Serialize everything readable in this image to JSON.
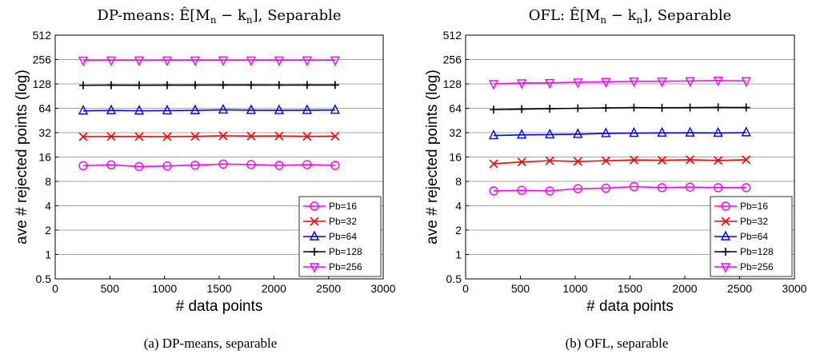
{
  "chart_data": [
    {
      "type": "line",
      "title_prefix": "DP-means: ",
      "title_math": "Ê[M",
      "title_suffix": ", Separable",
      "title_full": "DP-means: Ê[M_n − k_n], Separable",
      "xlabel": "# data points",
      "ylabel": "ave # rejected points (log)",
      "caption": "(a) DP-means, separable",
      "xlim": [
        0,
        3000
      ],
      "ylim": [
        0.5,
        512
      ],
      "yscale": "log2",
      "xticks": [
        "0",
        "500",
        "1000",
        "1500",
        "2000",
        "2500",
        "3000"
      ],
      "yticks": [
        "0.5",
        "1",
        "2",
        "4",
        "8",
        "16",
        "32",
        "64",
        "128",
        "256",
        "512"
      ],
      "grid": true,
      "legend_position": "bottom-right",
      "x": [
        256,
        512,
        768,
        1024,
        1280,
        1536,
        1792,
        2048,
        2304,
        2560
      ],
      "series": [
        {
          "name": "Pb=16",
          "color": "#ff00ff",
          "marker": "circle",
          "values": [
            12.5,
            12.8,
            12.2,
            12.4,
            12.7,
            13.1,
            12.9,
            12.6,
            12.9,
            12.6
          ]
        },
        {
          "name": "Pb=32",
          "color": "#ff0000",
          "marker": "x",
          "values": [
            28.5,
            28.7,
            28.6,
            28.5,
            28.8,
            29.3,
            29.0,
            29.1,
            28.8,
            28.9
          ]
        },
        {
          "name": "Pb=64",
          "color": "#0000ff",
          "marker": "triangle-up",
          "values": [
            59.5,
            60.2,
            59.6,
            59.8,
            60.3,
            61.2,
            60.5,
            60.4,
            60.6,
            60.9
          ]
        },
        {
          "name": "Pb=128",
          "color": "#000000",
          "marker": "plus",
          "values": [
            123,
            123.5,
            123.3,
            123.4,
            123.6,
            124,
            123.8,
            123.7,
            123.9,
            124
          ]
        },
        {
          "name": "Pb=256",
          "color": "#ff00ff",
          "marker": "triangle-down",
          "values": [
            250,
            250.5,
            250.2,
            250.4,
            250.6,
            251,
            250.8,
            250.7,
            250.9,
            251
          ]
        }
      ]
    },
    {
      "type": "line",
      "title_prefix": "OFL: ",
      "title_math": "Ê[M",
      "title_suffix": ", Separable",
      "title_full": "OFL: Ê[M_n − k_n], Separable",
      "xlabel": "# data points",
      "ylabel": "ave # rejected points (log)",
      "caption": "(b) OFL, separable",
      "xlim": [
        0,
        3000
      ],
      "ylim": [
        0.5,
        512
      ],
      "yscale": "log2",
      "xticks": [
        "0",
        "500",
        "1000",
        "1500",
        "2000",
        "2500",
        "3000"
      ],
      "yticks": [
        "0.5",
        "1",
        "2",
        "4",
        "8",
        "16",
        "32",
        "64",
        "128",
        "256",
        "512"
      ],
      "grid": true,
      "legend_position": "bottom-right",
      "x": [
        256,
        512,
        768,
        1024,
        1280,
        1536,
        1792,
        2048,
        2304,
        2560
      ],
      "series": [
        {
          "name": "Pb=16",
          "color": "#ff00ff",
          "marker": "circle",
          "values": [
            6.1,
            6.2,
            6.1,
            6.5,
            6.6,
            6.9,
            6.7,
            6.8,
            6.7,
            6.7
          ]
        },
        {
          "name": "Pb=32",
          "color": "#ff0000",
          "marker": "x",
          "values": [
            13.2,
            13.9,
            14.4,
            14.1,
            14.4,
            14.7,
            14.6,
            14.8,
            14.5,
            14.8
          ]
        },
        {
          "name": "Pb=64",
          "color": "#0000ff",
          "marker": "triangle-up",
          "values": [
            29.5,
            30.0,
            30.3,
            30.6,
            31.3,
            31.6,
            31.8,
            31.9,
            31.7,
            32.1
          ]
        },
        {
          "name": "Pb=128",
          "color": "#000000",
          "marker": "plus",
          "values": [
            61.5,
            62.5,
            63.3,
            64,
            64.6,
            65.3,
            65,
            65.2,
            65.6,
            65.4
          ]
        },
        {
          "name": "Pb=256",
          "color": "#ff00ff",
          "marker": "triangle-down",
          "values": [
            128,
            131,
            132,
            134,
            136,
            138,
            138,
            139,
            141,
            139
          ]
        }
      ]
    }
  ]
}
